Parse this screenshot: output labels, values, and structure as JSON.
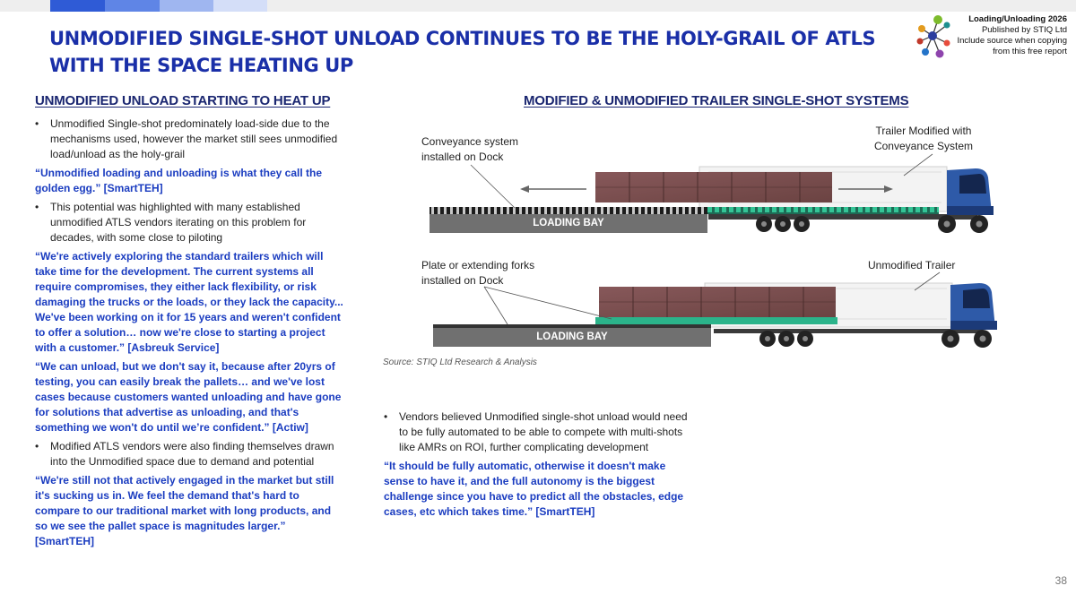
{
  "colors": {
    "title": "#1a2fa8",
    "quote": "#1a3cc0",
    "truck": "#2e5aa8",
    "pallet": "#7a4f48",
    "conveyor": "#2bb38a"
  },
  "header": {
    "title": "UNMODIFIED SINGLE-SHOT UNLOAD CONTINUES TO BE THE HOLY-GRAIL OF ATLS WITH THE SPACE HEATING UP",
    "publisher": {
      "report": "Loading/Unloading 2026",
      "published_by": "Published by STIQ Ltd",
      "note_line1": "Include source when copying",
      "note_line2": "from this free report"
    }
  },
  "left": {
    "heading": "UNMODIFIED UNLOAD STARTING TO HEAT UP",
    "b1": "Unmodified Single-shot predominately load-side due to the mechanisms used, however the market still sees unmodified load/unload as the holy-grail",
    "q1": "“Unmodified loading and unloading is what they call the golden egg.” [SmartTEH]",
    "b2": "This potential was highlighted with many established unmodified ATLS vendors iterating on this problem for decades, with some close to piloting",
    "q2": "“We're actively exploring the standard trailers which will take time for the development. The current systems all require compromises, they either lack flexibility, or risk damaging the trucks or the loads, or they lack the capacity... We've been working on it for 15 years and weren't confident to offer a solution… now we're close to starting a project with a customer.” [Asbreuk Service]",
    "q3": "“We can unload, but we don't say it, because after 20yrs of testing, you can easily break the pallets… and we've lost cases because customers wanted unloading and have gone for solutions that advertise as unloading, and that's something we won't do until we’re confident.” [Actiw]",
    "b3": "Modified ATLS vendors were also finding themselves drawn into the Unmodified space due to demand and potential",
    "q4": "“We're still not that actively engaged in the market but still it's sucking us in. We feel the demand that's hard to compare to our traditional market with long products, and so we see the pallet space is magnitudes larger.” [SmartTEH]"
  },
  "right": {
    "heading": "MODIFIED & UNMODIFIED TRAILER SINGLE-SHOT SYSTEMS",
    "diagram": {
      "top_left_label_1": "Conveyance system",
      "top_left_label_2": "installed on Dock",
      "top_right_label_1": "Trailer Modified with",
      "top_right_label_2": "Conveyance System",
      "bay_label": "LOADING BAY",
      "bottom_left_label_1": "Plate or extending forks",
      "bottom_left_label_2": "installed on Dock",
      "bottom_right_label": "Unmodified Trailer"
    },
    "source": "Source: STIQ Ltd Research & Analysis",
    "b1": "Vendors believed Unmodified single-shot unload would need to be fully automated to be able to compete with multi-shots like AMRs on ROI, further complicating development",
    "q1": "“It should be fully automatic, otherwise it doesn't make sense to have it, and the full autonomy is the biggest challenge since you have to predict all the obstacles, edge cases, etc which takes time.” [SmartTEH]"
  },
  "page_number": "38"
}
